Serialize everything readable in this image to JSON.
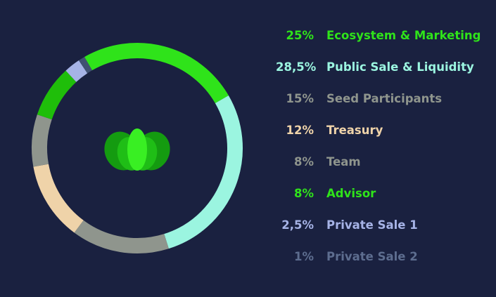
{
  "chart_data": {
    "type": "pie",
    "series": [
      {
        "label": "Ecosystem & Marketing",
        "percent_label": "25%",
        "value": 25,
        "color": "#2fe31a"
      },
      {
        "label": "Public Sale & Liquidity",
        "percent_label": "28,5%",
        "value": 28.5,
        "color": "#9bf5e0"
      },
      {
        "label": "Seed Participants",
        "percent_label": "15%",
        "value": 15,
        "color": "#8f958d"
      },
      {
        "label": "Treasury",
        "percent_label": "12%",
        "value": 12,
        "color": "#efd3a9"
      },
      {
        "label": "Team",
        "percent_label": "8%",
        "value": 8,
        "color": "#8f958d"
      },
      {
        "label": "Advisor",
        "percent_label": "8%",
        "value": 8,
        "color": "#1fbe0a"
      },
      {
        "label": "Private Sale 1",
        "percent_label": "2,5%",
        "value": 2.5,
        "color": "#a6b3e6"
      },
      {
        "label": "Private Sale 2",
        "percent_label": "1%",
        "value": 1,
        "color": "#405272"
      }
    ],
    "legend_colors": {
      "Ecosystem & Marketing": "#2fe31a",
      "Public Sale & Liquidity": "#9bf5e0",
      "Seed Participants": "#8f958d",
      "Treasury": "#efd3a9",
      "Team": "#8f958d",
      "Advisor": "#2fe31a",
      "Private Sale 1": "#a6b3e6",
      "Private Sale 2": "#5d6d8f"
    },
    "center_icon": "lotus-icon",
    "legend_position": "right"
  },
  "colors": {
    "background": "#1a2140",
    "lotus_dark": "#149b10",
    "lotus_mid": "#1fbe16",
    "lotus_light": "#39ef23"
  }
}
